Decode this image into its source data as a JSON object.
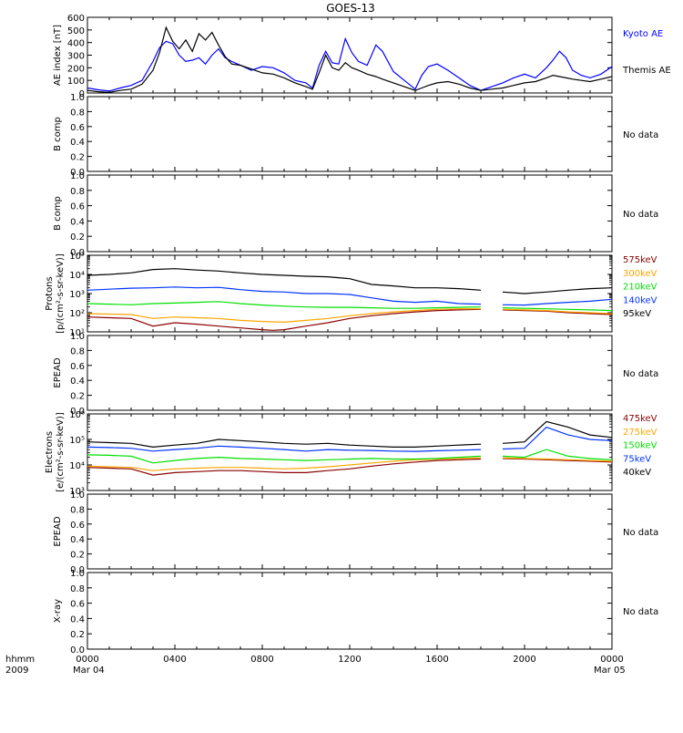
{
  "title": "GOES-13",
  "x_axis": {
    "ticks": [
      "0000",
      "0400",
      "0800",
      "1200",
      "1600",
      "2000",
      "0000"
    ],
    "left_label_line1": "hhmm",
    "left_label_line2": "2009",
    "date_start": "Mar 04",
    "date_end": "Mar 05"
  },
  "colors": {
    "kyoto": "#0000ff",
    "themis": "#000000",
    "dark_red": "#8b0000",
    "orange": "#ffa500",
    "green": "#00e000",
    "blue": "#0033ff",
    "black": "#000000"
  },
  "chart_data": [
    {
      "type": "line",
      "id": "ae",
      "ylabel": "AE index [nT]",
      "ylim": [
        0,
        600
      ],
      "yticks": [
        "0",
        "100",
        "200",
        "300",
        "400",
        "500",
        "600"
      ],
      "x_unit": "hours since 0000 UT Mar 04",
      "series": [
        {
          "name": "Kyoto AE",
          "color_key": "kyoto",
          "x": [
            0,
            0.5,
            1,
            1.5,
            2,
            2.5,
            3,
            3.3,
            3.6,
            3.9,
            4.2,
            4.5,
            4.8,
            5.1,
            5.4,
            5.7,
            6,
            6.3,
            6.6,
            7,
            7.5,
            8,
            8.5,
            9,
            9.5,
            10,
            10.3,
            10.6,
            10.9,
            11.2,
            11.5,
            11.8,
            12.1,
            12.4,
            12.8,
            13.2,
            13.5,
            14,
            14.5,
            15,
            15.3,
            15.6,
            16,
            16.5,
            17,
            17.5,
            18,
            18.5,
            19,
            19.5,
            20,
            20.5,
            21,
            21.3,
            21.6,
            21.9,
            22.2,
            22.6,
            23,
            23.5,
            24
          ],
          "values": [
            40,
            25,
            15,
            40,
            60,
            100,
            250,
            360,
            410,
            390,
            300,
            250,
            260,
            280,
            230,
            300,
            350,
            280,
            250,
            220,
            180,
            210,
            200,
            160,
            100,
            80,
            40,
            220,
            330,
            240,
            230,
            430,
            320,
            250,
            220,
            380,
            330,
            170,
            100,
            30,
            140,
            210,
            230,
            180,
            120,
            60,
            20,
            50,
            80,
            120,
            150,
            120,
            200,
            260,
            330,
            280,
            180,
            140,
            120,
            150,
            210
          ]
        },
        {
          "name": "Themis AE",
          "color_key": "themis",
          "x": [
            0,
            0.5,
            1,
            1.5,
            2,
            2.5,
            3,
            3.3,
            3.6,
            3.9,
            4.2,
            4.5,
            4.8,
            5.1,
            5.4,
            5.7,
            6,
            6.3,
            6.6,
            7,
            7.5,
            8,
            8.5,
            9,
            9.5,
            10,
            10.3,
            10.6,
            10.9,
            11.2,
            11.5,
            11.8,
            12.1,
            12.4,
            12.8,
            13.2,
            13.5,
            14,
            14.5,
            15,
            15.3,
            15.6,
            16,
            16.5,
            17,
            17.5,
            18,
            18.5,
            19,
            19.5,
            20,
            20.5,
            21,
            21.3,
            21.6,
            21.9,
            22.2,
            22.6,
            23,
            23.5,
            24
          ],
          "values": [
            20,
            10,
            5,
            20,
            30,
            70,
            180,
            320,
            520,
            410,
            350,
            420,
            330,
            470,
            420,
            480,
            380,
            290,
            230,
            220,
            190,
            160,
            150,
            120,
            80,
            50,
            30,
            160,
            300,
            200,
            180,
            240,
            200,
            180,
            150,
            130,
            110,
            80,
            50,
            20,
            40,
            60,
            80,
            90,
            70,
            40,
            20,
            30,
            40,
            60,
            80,
            90,
            120,
            140,
            130,
            120,
            110,
            100,
            90,
            110,
            130
          ]
        }
      ]
    },
    {
      "type": "line",
      "id": "bcomp1",
      "ylabel": "B comp",
      "ylim": [
        0,
        1
      ],
      "yticks": [
        "0.0",
        "0.2",
        "0.4",
        "0.6",
        "0.8",
        "1.0"
      ],
      "series": [],
      "note": "No data"
    },
    {
      "type": "line",
      "id": "bcomp2",
      "ylabel": "B comp",
      "ylim": [
        0,
        1
      ],
      "yticks": [
        "0.0",
        "0.2",
        "0.4",
        "0.6",
        "0.8",
        "1.0"
      ],
      "series": [],
      "note": "No data"
    },
    {
      "type": "line",
      "id": "protons",
      "ylabel_line1": "Protons",
      "ylabel_line2": "[p/(cm²-s-sr-keV)]",
      "scale": "log",
      "ylim": [
        10,
        100000
      ],
      "yticks": [
        "10¹",
        "10²",
        "10³",
        "10⁴",
        "10⁵"
      ],
      "gap": [
        18.3,
        18.8
      ],
      "series": [
        {
          "name": "575keV",
          "color_key": "dark_red",
          "x": [
            0,
            1,
            2,
            3,
            4,
            5,
            6,
            7,
            8,
            8.5,
            9,
            10,
            11,
            12,
            13,
            14,
            15,
            16,
            17,
            18,
            19,
            20,
            21,
            22,
            23,
            24
          ],
          "values": [
            60,
            55,
            50,
            20,
            30,
            25,
            20,
            16,
            13,
            12,
            13,
            20,
            30,
            50,
            70,
            90,
            110,
            130,
            140,
            150,
            140,
            130,
            120,
            100,
            90,
            80
          ]
        },
        {
          "name": "300keV",
          "color_key": "orange",
          "x": [
            0,
            1,
            2,
            3,
            4,
            5,
            6,
            7,
            8,
            9,
            10,
            11,
            12,
            13,
            14,
            15,
            16,
            17,
            18,
            19,
            20,
            21,
            22,
            23,
            24
          ],
          "values": [
            90,
            85,
            80,
            50,
            60,
            55,
            50,
            40,
            35,
            32,
            40,
            50,
            70,
            90,
            110,
            130,
            150,
            160,
            160,
            150,
            140,
            130,
            110,
            100,
            90
          ]
        },
        {
          "name": "210keV",
          "color_key": "green",
          "x": [
            0,
            1,
            2,
            3,
            4,
            5,
            6,
            7,
            8,
            9,
            10,
            11,
            12,
            13,
            14,
            15,
            16,
            17,
            18,
            19,
            20,
            21,
            22,
            23,
            24
          ],
          "values": [
            300,
            280,
            260,
            300,
            320,
            350,
            380,
            300,
            250,
            220,
            200,
            190,
            190,
            180,
            170,
            170,
            180,
            190,
            200,
            180,
            170,
            160,
            150,
            140,
            130
          ]
        },
        {
          "name": "140keV",
          "color_key": "blue",
          "x": [
            0,
            1,
            2,
            3,
            4,
            5,
            6,
            7,
            8,
            9,
            10,
            11,
            12,
            13,
            14,
            15,
            16,
            17,
            18,
            19,
            20,
            21,
            22,
            23,
            24
          ],
          "values": [
            1500,
            1700,
            1900,
            2000,
            2200,
            2000,
            2100,
            1600,
            1300,
            1200,
            1000,
            1000,
            900,
            600,
            400,
            350,
            400,
            300,
            280,
            260,
            250,
            300,
            350,
            400,
            500
          ]
        },
        {
          "name": "95keV",
          "color_key": "black",
          "x": [
            0,
            1,
            2,
            3,
            4,
            5,
            6,
            7,
            8,
            9,
            10,
            11,
            12,
            13,
            14,
            15,
            16,
            17,
            18,
            19,
            20,
            21,
            22,
            23,
            24
          ],
          "values": [
            9000,
            10000,
            12000,
            18000,
            20000,
            17000,
            15000,
            12000,
            10000,
            9000,
            8000,
            7500,
            6000,
            3000,
            2500,
            2000,
            2000,
            1800,
            1500,
            1200,
            1000,
            1200,
            1500,
            1800,
            2000
          ]
        }
      ]
    },
    {
      "type": "line",
      "id": "epead1",
      "ylabel": "EPEAD",
      "ylim": [
        0,
        1
      ],
      "yticks": [
        "0.0",
        "0.2",
        "0.4",
        "0.6",
        "0.8",
        "1.0"
      ],
      "series": [],
      "note": "No data"
    },
    {
      "type": "line",
      "id": "electrons",
      "ylabel_line1": "Electrons",
      "ylabel_line2": "[e/(cm²-s-sr-keV)]",
      "scale": "log",
      "ylim": [
        1000,
        1000000
      ],
      "yticks": [
        "10³",
        "10⁴",
        "10⁵",
        "10⁶"
      ],
      "gap": [
        18.3,
        18.8
      ],
      "series": [
        {
          "name": "475keV",
          "color_key": "dark_red",
          "x": [
            0,
            1,
            2,
            3,
            4,
            5,
            6,
            7,
            8,
            9,
            10,
            11,
            12,
            13,
            14,
            15,
            16,
            17,
            18,
            19,
            20,
            21,
            22,
            23,
            24
          ],
          "values": [
            8000,
            7500,
            7000,
            4000,
            5000,
            5500,
            6000,
            6000,
            5500,
            5000,
            5000,
            6000,
            7000,
            9000,
            11000,
            13000,
            15000,
            16000,
            17000,
            18000,
            17000,
            16000,
            15000,
            14000,
            13000
          ]
        },
        {
          "name": "275keV",
          "color_key": "orange",
          "x": [
            0,
            1,
            2,
            3,
            4,
            5,
            6,
            7,
            8,
            9,
            10,
            11,
            12,
            13,
            14,
            15,
            16,
            17,
            18,
            19,
            20,
            21,
            22,
            23,
            24
          ],
          "values": [
            9000,
            8500,
            8000,
            6000,
            7000,
            7500,
            8000,
            8000,
            7500,
            7000,
            7500,
            8500,
            10000,
            12000,
            14000,
            16000,
            17000,
            18000,
            19000,
            19000,
            18000,
            17000,
            16000,
            15000,
            14000
          ]
        },
        {
          "name": "150keV",
          "color_key": "green",
          "x": [
            0,
            1,
            2,
            3,
            4,
            5,
            6,
            7,
            8,
            9,
            10,
            11,
            12,
            13,
            14,
            15,
            16,
            17,
            18,
            19,
            20,
            21,
            22,
            23,
            24
          ],
          "values": [
            25000,
            24000,
            22000,
            12000,
            15000,
            18000,
            20000,
            18000,
            17000,
            16000,
            15000,
            16000,
            17000,
            18000,
            17000,
            17000,
            18000,
            20000,
            22000,
            22000,
            20000,
            40000,
            22000,
            18000,
            16000
          ]
        },
        {
          "name": "75keV",
          "color_key": "blue",
          "x": [
            0,
            1,
            2,
            3,
            4,
            5,
            6,
            7,
            8,
            9,
            10,
            11,
            12,
            13,
            14,
            15,
            16,
            17,
            18,
            19,
            20,
            21,
            22,
            23,
            24
          ],
          "values": [
            50000,
            48000,
            45000,
            35000,
            40000,
            45000,
            55000,
            50000,
            45000,
            40000,
            35000,
            40000,
            38000,
            37000,
            35000,
            34000,
            36000,
            38000,
            40000,
            42000,
            45000,
            300000,
            150000,
            100000,
            90000
          ]
        },
        {
          "name": "40keV",
          "color_key": "black",
          "x": [
            0,
            1,
            2,
            3,
            4,
            5,
            6,
            7,
            8,
            9,
            10,
            11,
            12,
            13,
            14,
            15,
            16,
            17,
            18,
            19,
            20,
            21,
            22,
            23,
            24
          ],
          "values": [
            80000,
            75000,
            70000,
            50000,
            60000,
            70000,
            100000,
            90000,
            80000,
            70000,
            65000,
            70000,
            60000,
            55000,
            50000,
            50000,
            55000,
            60000,
            65000,
            70000,
            80000,
            500000,
            300000,
            150000,
            120000
          ]
        }
      ]
    },
    {
      "type": "line",
      "id": "epead2",
      "ylabel": "EPEAD",
      "ylim": [
        0,
        1
      ],
      "yticks": [
        "0.0",
        "0.2",
        "0.4",
        "0.6",
        "0.8",
        "1.0"
      ],
      "series": [],
      "note": "No data"
    },
    {
      "type": "line",
      "id": "xray",
      "ylabel": "X-ray",
      "ylim": [
        0,
        1
      ],
      "yticks": [
        "0.0",
        "0.2",
        "0.4",
        "0.6",
        "0.8",
        "1.0"
      ],
      "series": [],
      "note": "No data"
    }
  ]
}
